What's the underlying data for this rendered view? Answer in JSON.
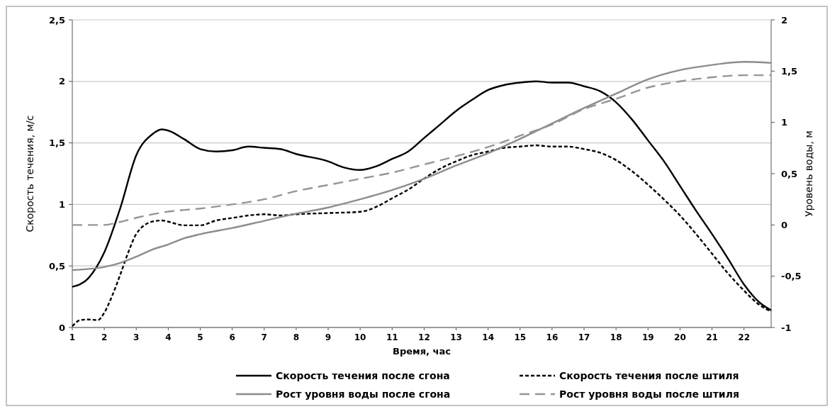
{
  "chart_data": {
    "type": "line",
    "xlabel": "Время, час",
    "ylabel": "Скорость течения, м/с",
    "y2label": "Уровень воды, м",
    "xlim": [
      1,
      22.85
    ],
    "xticks": [
      1,
      2,
      3,
      4,
      5,
      6,
      7,
      8,
      9,
      10,
      11,
      12,
      13,
      14,
      15,
      16,
      17,
      18,
      19,
      20,
      21,
      22
    ],
    "ylim": [
      0,
      2.5
    ],
    "yticks": [
      0,
      {
        "value": 0.5,
        "label": "0,5"
      },
      1,
      {
        "value": 1.5,
        "label": "1,5"
      },
      2,
      {
        "value": 2.5,
        "label": "2,5"
      }
    ],
    "y2lim": [
      -1,
      2
    ],
    "y2ticks": [
      -1,
      {
        "value": -0.5,
        "label": "-0,5"
      },
      0,
      {
        "value": 0.5,
        "label": "0,5"
      },
      1,
      {
        "value": 1.5,
        "label": "1,5"
      },
      2
    ],
    "grid": "y",
    "legend": "bottom",
    "marker": "none",
    "series": [
      {
        "name": "Скорость течения после сгона",
        "color": "#000000",
        "line_style": "solid",
        "x": [
          1,
          1.5,
          2,
          2.5,
          3,
          3.5,
          3.8,
          4,
          4.5,
          5,
          5.5,
          6,
          6.5,
          7,
          7.5,
          8,
          9,
          9.5,
          10,
          10.5,
          11,
          11.5,
          12,
          12.5,
          13,
          13.5,
          14,
          14.5,
          15,
          15.5,
          16,
          16.5,
          17,
          17.5,
          18,
          18.5,
          19,
          19.5,
          20,
          20.5,
          21,
          21.5,
          22,
          22.5,
          22.85
        ],
        "values": [
          0.33,
          0.4,
          0.61,
          0.97,
          1.4,
          1.57,
          1.61,
          1.6,
          1.53,
          1.45,
          1.43,
          1.44,
          1.47,
          1.46,
          1.45,
          1.41,
          1.35,
          1.3,
          1.28,
          1.31,
          1.37,
          1.43,
          1.54,
          1.65,
          1.76,
          1.85,
          1.93,
          1.97,
          1.99,
          2.0,
          1.99,
          1.99,
          1.96,
          1.92,
          1.83,
          1.69,
          1.52,
          1.35,
          1.15,
          0.95,
          0.76,
          0.56,
          0.35,
          0.2,
          0.14
        ]
      },
      {
        "name": "Скорость течения после штиля",
        "color": "#000000",
        "line_style": "dashed",
        "x": [
          1,
          1.25,
          1.5,
          1.8,
          2,
          2.25,
          2.5,
          2.75,
          3,
          3.5,
          3.8,
          4,
          4.5,
          5,
          5.5,
          6,
          6.5,
          7,
          7.5,
          8,
          9,
          10,
          10.5,
          11,
          11.5,
          12,
          12.5,
          13,
          13.5,
          14,
          14.5,
          15,
          15.5,
          16,
          16.5,
          17,
          17.5,
          18,
          18.5,
          19,
          19.5,
          20,
          20.5,
          21,
          21.5,
          22,
          22.5,
          22.85
        ],
        "values": [
          0.01,
          0.06,
          0.065,
          0.06,
          0.12,
          0.26,
          0.43,
          0.61,
          0.76,
          0.86,
          0.87,
          0.86,
          0.83,
          0.83,
          0.87,
          0.89,
          0.91,
          0.92,
          0.91,
          0.92,
          0.93,
          0.94,
          0.98,
          1.05,
          1.12,
          1.21,
          1.29,
          1.35,
          1.4,
          1.43,
          1.46,
          1.47,
          1.48,
          1.47,
          1.47,
          1.45,
          1.42,
          1.36,
          1.27,
          1.16,
          1.04,
          0.91,
          0.76,
          0.6,
          0.44,
          0.3,
          0.18,
          0.13
        ]
      },
      {
        "name": "Рост уровня воды после сгона",
        "color": "#8c8c8c",
        "line_style": "solid",
        "axis": "y2",
        "x": [
          1,
          2,
          2.5,
          3,
          3.5,
          4,
          4.5,
          5,
          6,
          7,
          8,
          9,
          10,
          11,
          12,
          13,
          14,
          15,
          16,
          17,
          18,
          19,
          20,
          21,
          22,
          22.85
        ],
        "values": [
          -0.44,
          -0.41,
          -0.37,
          -0.31,
          -0.24,
          -0.19,
          -0.13,
          -0.09,
          -0.03,
          0.04,
          0.11,
          0.17,
          0.25,
          0.34,
          0.45,
          0.58,
          0.7,
          0.84,
          0.99,
          1.14,
          1.28,
          1.42,
          1.51,
          1.56,
          1.59,
          1.58
        ]
      },
      {
        "name": "Рост уровня воды после штиля",
        "color": "#969696",
        "line_style": "dashed",
        "axis": "y2",
        "x": [
          1,
          1.5,
          2,
          2.5,
          3,
          4,
          5,
          6,
          7,
          8,
          9,
          10,
          11,
          12,
          13,
          14,
          15,
          16,
          17,
          18,
          19,
          20,
          21,
          22,
          22.85
        ],
        "values": [
          0.0,
          0.0,
          0.0,
          0.03,
          0.07,
          0.13,
          0.16,
          0.2,
          0.25,
          0.33,
          0.39,
          0.45,
          0.51,
          0.59,
          0.67,
          0.76,
          0.87,
          0.98,
          1.13,
          1.23,
          1.34,
          1.4,
          1.44,
          1.46,
          1.46
        ]
      }
    ]
  }
}
